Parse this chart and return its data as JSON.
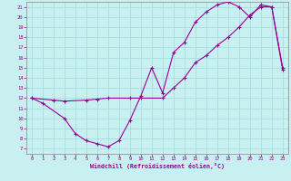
{
  "xlabel": "Windchill (Refroidissement éolien,°C)",
  "bg_color": "#c8f0f0",
  "grid_color": "#a0d8d8",
  "line_color": "#990099",
  "xlim": [
    -0.5,
    23.5
  ],
  "ylim": [
    6.5,
    21.5
  ],
  "xticks": [
    0,
    1,
    2,
    3,
    4,
    5,
    6,
    7,
    8,
    9,
    10,
    11,
    12,
    13,
    14,
    15,
    16,
    17,
    18,
    19,
    20,
    21,
    22,
    23
  ],
  "yticks": [
    7,
    8,
    9,
    10,
    11,
    12,
    13,
    14,
    15,
    16,
    17,
    18,
    19,
    20,
    21
  ],
  "line1_x": [
    0,
    1,
    3,
    4,
    5,
    6,
    7,
    8,
    9,
    10,
    11,
    12,
    13,
    14,
    15,
    16,
    17,
    18,
    19,
    20,
    21,
    22,
    23
  ],
  "line1_y": [
    12,
    11.5,
    10,
    8.5,
    7.8,
    7.5,
    7.2,
    7.8,
    9.8,
    12.2,
    15.0,
    12.5,
    16.5,
    17.5,
    19.5,
    20.5,
    21.2,
    21.5,
    21.0,
    20.0,
    21.2,
    21.0,
    14.8
  ],
  "line2_x": [
    0,
    2,
    3,
    5,
    6,
    7,
    9,
    10,
    12,
    13,
    14,
    15,
    16,
    17,
    18,
    19,
    20,
    21,
    22,
    23
  ],
  "line2_y": [
    12,
    11.8,
    11.7,
    11.8,
    11.9,
    12.0,
    12.0,
    12.0,
    12.0,
    13.0,
    14.0,
    15.5,
    16.2,
    17.2,
    18.0,
    19.0,
    20.2,
    21.0,
    21.0,
    15.0
  ],
  "spine_color": "#888888"
}
